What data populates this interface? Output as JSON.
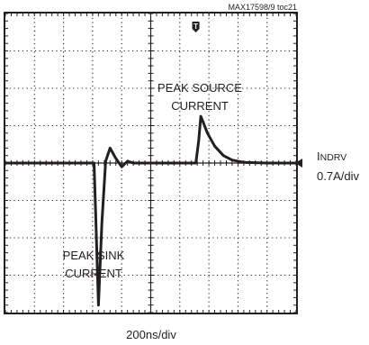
{
  "chart_data": {
    "type": "line",
    "figure_id": "MAX17598/9 toc21",
    "grid": true,
    "grid_divisions": {
      "x": 10,
      "y": 8
    },
    "x_scale": {
      "label": "200ns/div",
      "ns_per_div": 200
    },
    "y_scale": {
      "label_line1": "INDRV",
      "label_line2": "0.7A/div",
      "amps_per_div": 0.7
    },
    "baseline_div": 0,
    "series": [
      {
        "name": "INDRV",
        "x_div": [
          0,
          3.05,
          3.1,
          3.2,
          3.32,
          3.45,
          3.6,
          3.78,
          4.0,
          4.2,
          4.4,
          5.0,
          6.0,
          6.3,
          6.55,
          6.65,
          6.72,
          6.8,
          6.95,
          7.2,
          7.5,
          7.8,
          8.2,
          9.0,
          10.0
        ],
        "y_div": [
          0,
          0,
          -1.2,
          -3.8,
          -1.6,
          0.05,
          0.4,
          0.15,
          -0.1,
          0.05,
          0,
          0,
          0,
          0,
          0,
          0.6,
          1.25,
          1.1,
          0.8,
          0.45,
          0.2,
          0.08,
          0.02,
          0,
          0
        ]
      }
    ],
    "annotations": [
      {
        "id": "peak-source",
        "line1": "PEAK SOURCE",
        "line2": "CURRENT",
        "x_div": 5.9,
        "y_div": 2.0
      },
      {
        "id": "peak-sink",
        "line1": "PEAK SINK",
        "line2": "CURRENT",
        "x_div": 3.05,
        "y_div": -3.3
      }
    ],
    "markers": [
      {
        "type": "trigger",
        "symbol": "T",
        "x_div": 6.55
      },
      {
        "type": "ground",
        "symbol": "◄"
      }
    ]
  }
}
